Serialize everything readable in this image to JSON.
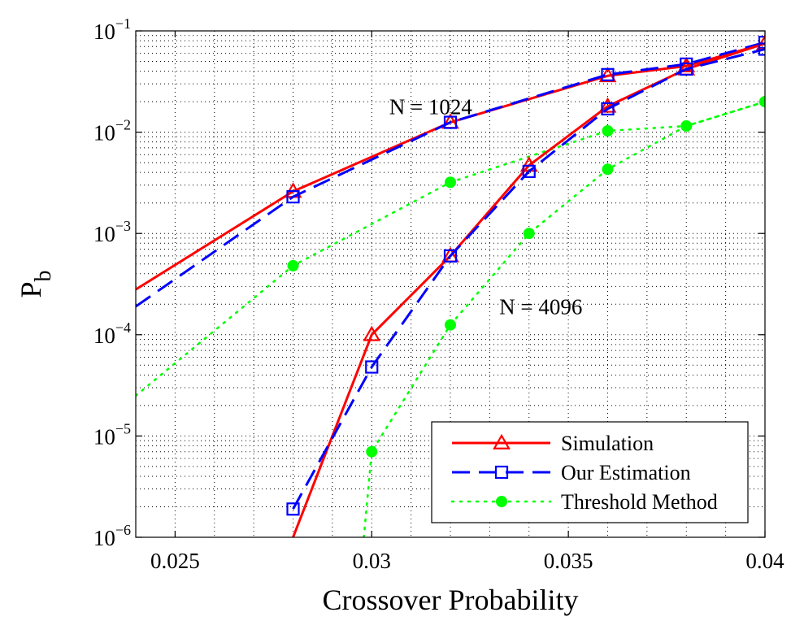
{
  "chart_data": {
    "type": "line",
    "title": "",
    "xlabel": "Crossover Probability",
    "ylabel": "P",
    "ylabel_subscript": "b",
    "x_scale": "linear",
    "y_scale": "log",
    "xlim": [
      0.024,
      0.04
    ],
    "ylim": [
      1e-06,
      0.1
    ],
    "grid": true,
    "grid_style": "dotted",
    "x_ticks": [
      0.025,
      0.03,
      0.035,
      0.04
    ],
    "x_tick_labels": [
      "0.025",
      "0.03",
      "0.035",
      "0.04"
    ],
    "y_ticks": [
      1e-06,
      1e-05,
      0.0001,
      0.001,
      0.01,
      0.1
    ],
    "y_tick_labels": [
      {
        "base": "10",
        "exp": "−6"
      },
      {
        "base": "10",
        "exp": "−5"
      },
      {
        "base": "10",
        "exp": "−4"
      },
      {
        "base": "10",
        "exp": "−3"
      },
      {
        "base": "10",
        "exp": "−2"
      },
      {
        "base": "10",
        "exp": "−1"
      }
    ],
    "legend": {
      "placement": "bottom-right",
      "entries": [
        {
          "label": "Simulation",
          "color": "#ff0000",
          "dash": "solid",
          "marker": "triangle"
        },
        {
          "label": "Our Estimation",
          "color": "#0000ff",
          "dash": "dashed",
          "marker": "square"
        },
        {
          "label": "Threshold Method",
          "color": "#00ff00",
          "dash": "dotted",
          "marker": "dot"
        }
      ]
    },
    "series": [
      {
        "name": "Simulation",
        "group": "N = 1024",
        "color": "#ff0000",
        "dash": "solid",
        "marker": "triangle",
        "x": [
          0.024,
          0.028,
          0.032,
          0.036,
          0.038,
          0.04
        ],
        "y": [
          0.00028,
          0.0026,
          0.0125,
          0.036,
          0.045,
          0.075
        ]
      },
      {
        "name": "Our Estimation",
        "group": "N = 1024",
        "color": "#0000ff",
        "dash": "dashed",
        "marker": "square",
        "x": [
          0.024,
          0.028,
          0.032,
          0.036,
          0.038,
          0.04
        ],
        "y": [
          0.00019,
          0.0023,
          0.0125,
          0.037,
          0.047,
          0.077
        ]
      },
      {
        "name": "Threshold Method",
        "group": "N = 1024",
        "color": "#00ff00",
        "dash": "dotted",
        "marker": "dot",
        "x": [
          0.024,
          0.028,
          0.032,
          0.036,
          0.038,
          0.04
        ],
        "y": [
          2.5e-05,
          0.00048,
          0.0032,
          0.0103,
          0.0115,
          0.02
        ]
      },
      {
        "name": "Simulation",
        "group": "N = 4096",
        "color": "#ff0000",
        "dash": "solid",
        "marker": "triangle",
        "x": [
          0.028,
          0.03,
          0.032,
          0.034,
          0.036,
          0.038,
          0.04
        ],
        "y": [
          1e-06,
          0.0001,
          0.0006,
          0.0047,
          0.018,
          0.042,
          0.075
        ]
      },
      {
        "name": "Our Estimation",
        "group": "N = 4096",
        "color": "#0000ff",
        "dash": "dashed",
        "marker": "square",
        "x": [
          0.028,
          0.03,
          0.032,
          0.034,
          0.036,
          0.038,
          0.04
        ],
        "y": [
          1.9e-06,
          4.8e-05,
          0.0006,
          0.0041,
          0.017,
          0.042,
          0.066
        ]
      },
      {
        "name": "Threshold Method",
        "group": "N = 4096",
        "color": "#00ff00",
        "dash": "dotted",
        "marker": "dot",
        "x": [
          0.0298,
          0.03,
          0.032,
          0.034,
          0.036,
          0.038,
          0.04
        ],
        "y": [
          1e-06,
          7e-06,
          0.000125,
          0.001,
          0.0043,
          0.0115,
          0.02
        ]
      }
    ],
    "marker_points": [
      {
        "series_index": 0,
        "indices": [
          1,
          2,
          3,
          4,
          5
        ]
      },
      {
        "series_index": 1,
        "indices": [
          1,
          2,
          3,
          4,
          5
        ]
      },
      {
        "series_index": 2,
        "indices": [
          1,
          2,
          3,
          4,
          5
        ]
      },
      {
        "series_index": 3,
        "indices": [
          1,
          2,
          3,
          4,
          5,
          6
        ]
      },
      {
        "series_index": 4,
        "indices": [
          0,
          1,
          2,
          3,
          4,
          5,
          6
        ]
      },
      {
        "series_index": 5,
        "indices": [
          1,
          2,
          3,
          4,
          5,
          6
        ]
      }
    ],
    "annotations": [
      {
        "text": "N = 1024",
        "x": 0.0315,
        "y": 0.015
      },
      {
        "text": "N = 4096",
        "x": 0.0343,
        "y": 0.00016
      }
    ]
  }
}
